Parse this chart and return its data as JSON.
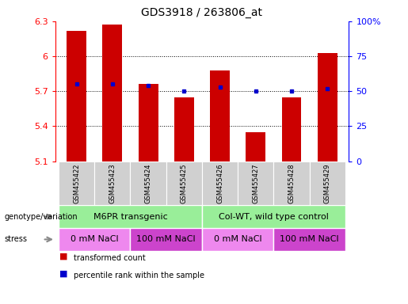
{
  "title": "GDS3918 / 263806_at",
  "samples": [
    "GSM455422",
    "GSM455423",
    "GSM455424",
    "GSM455425",
    "GSM455426",
    "GSM455427",
    "GSM455428",
    "GSM455429"
  ],
  "red_values": [
    6.22,
    6.27,
    5.76,
    5.65,
    5.88,
    5.35,
    5.65,
    6.03
  ],
  "blue_values": [
    55,
    55,
    54,
    50,
    53,
    50,
    50,
    52
  ],
  "ylim_left": [
    5.1,
    6.3
  ],
  "ylim_right": [
    0,
    100
  ],
  "yticks_left": [
    5.1,
    5.4,
    5.7,
    6.0,
    6.3
  ],
  "ytick_labels_left": [
    "5.1",
    "5.4",
    "5.7",
    "6",
    "6.3"
  ],
  "yticks_right": [
    0,
    25,
    50,
    75,
    100
  ],
  "ytick_labels_right": [
    "0",
    "25",
    "50",
    "75",
    "100%"
  ],
  "grid_yticks": [
    5.4,
    5.7,
    6.0
  ],
  "bar_color": "#cc0000",
  "dot_color": "#0000cc",
  "bar_bottom": 5.1,
  "genotype_groups": [
    {
      "label": "M6PR transgenic",
      "start": 0,
      "end": 4,
      "color": "#99ee99"
    },
    {
      "label": "Col-WT, wild type control",
      "start": 4,
      "end": 8,
      "color": "#99ee99"
    }
  ],
  "stress_groups": [
    {
      "label": "0 mM NaCl",
      "start": 0,
      "end": 2,
      "color": "#ee88ee"
    },
    {
      "label": "100 mM NaCl",
      "start": 2,
      "end": 4,
      "color": "#cc44cc"
    },
    {
      "label": "0 mM NaCl",
      "start": 4,
      "end": 6,
      "color": "#ee88ee"
    },
    {
      "label": "100 mM NaCl",
      "start": 6,
      "end": 8,
      "color": "#cc44cc"
    }
  ],
  "legend_items": [
    {
      "label": "transformed count",
      "color": "#cc0000"
    },
    {
      "label": "percentile rank within the sample",
      "color": "#0000cc"
    }
  ],
  "title_fontsize": 10,
  "tick_fontsize": 8,
  "label_fontsize": 8,
  "sample_fontsize": 6,
  "row_fontsize": 8
}
